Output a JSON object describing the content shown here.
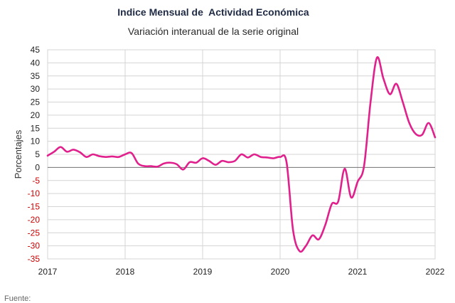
{
  "chart_data": {
    "type": "line",
    "title": "Indice Mensual de  Actividad Económica",
    "subtitle": "Variación interanual de la serie original",
    "ylabel": "Porcentajes",
    "xlabel": "",
    "ylim": [
      -35,
      45
    ],
    "y_ticks": [
      45,
      40,
      35,
      30,
      25,
      20,
      15,
      10,
      5,
      0,
      -5,
      -10,
      -15,
      -20,
      -25,
      -30,
      -35
    ],
    "x_range": [
      2017,
      2022
    ],
    "x_ticks": [
      "2017",
      "2018",
      "2019",
      "2020",
      "2021",
      "2022"
    ],
    "grid": true,
    "negative_tick_color": "#cc0000",
    "series": [
      {
        "color": "#e0208c",
        "x": [
          2017.0,
          2017.083,
          2017.167,
          2017.25,
          2017.333,
          2017.417,
          2017.5,
          2017.583,
          2017.667,
          2017.75,
          2017.833,
          2017.917,
          2018.0,
          2018.083,
          2018.167,
          2018.25,
          2018.333,
          2018.417,
          2018.5,
          2018.583,
          2018.667,
          2018.75,
          2018.833,
          2018.917,
          2019.0,
          2019.083,
          2019.167,
          2019.25,
          2019.333,
          2019.417,
          2019.5,
          2019.583,
          2019.667,
          2019.75,
          2019.833,
          2019.917,
          2020.0,
          2020.083,
          2020.167,
          2020.25,
          2020.333,
          2020.417,
          2020.5,
          2020.583,
          2020.667,
          2020.75,
          2020.833,
          2020.917,
          2021.0,
          2021.083,
          2021.167,
          2021.25,
          2021.333,
          2021.417,
          2021.5,
          2021.583,
          2021.667,
          2021.75,
          2021.833,
          2021.917,
          2022.0
        ],
        "values": [
          4.5,
          6.0,
          7.8,
          6.0,
          6.8,
          5.8,
          4.0,
          5.0,
          4.3,
          4.0,
          4.2,
          4.0,
          5.0,
          5.5,
          1.5,
          0.5,
          0.5,
          0.3,
          1.5,
          1.8,
          1.2,
          -0.8,
          2.0,
          1.8,
          3.5,
          2.5,
          1.0,
          2.5,
          2.0,
          2.5,
          5.0,
          3.8,
          5.0,
          4.0,
          3.8,
          3.5,
          4.0,
          2.0,
          -24.0,
          -32.0,
          -30.0,
          -26.0,
          -27.5,
          -22.0,
          -14.0,
          -13.0,
          -0.5,
          -11.5,
          -5.5,
          0.5,
          25.0,
          42.0,
          34.0,
          28.0,
          32.0,
          25.0,
          17.0,
          12.8,
          12.5,
          17.0,
          11.5
        ]
      }
    ]
  },
  "footer": "Fuente:"
}
